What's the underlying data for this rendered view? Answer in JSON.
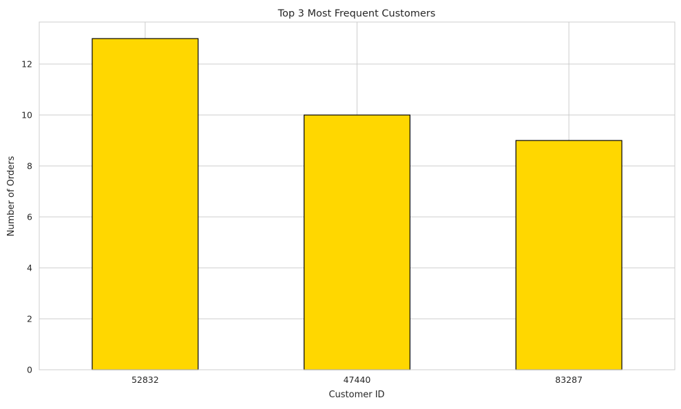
{
  "chart_data": {
    "type": "bar",
    "title": "Top 3 Most Frequent Customers",
    "xlabel": "Customer ID",
    "ylabel": "Number of Orders",
    "categories": [
      "52832",
      "47440",
      "83287"
    ],
    "values": [
      13,
      10,
      9
    ],
    "ylim": [
      0,
      13.65
    ],
    "yticks": [
      0,
      2,
      4,
      6,
      8,
      10,
      12
    ],
    "grid": true,
    "bar_color": "#FFD700",
    "bar_edge_color": "#000000",
    "grid_color": "#CCCCCC"
  }
}
